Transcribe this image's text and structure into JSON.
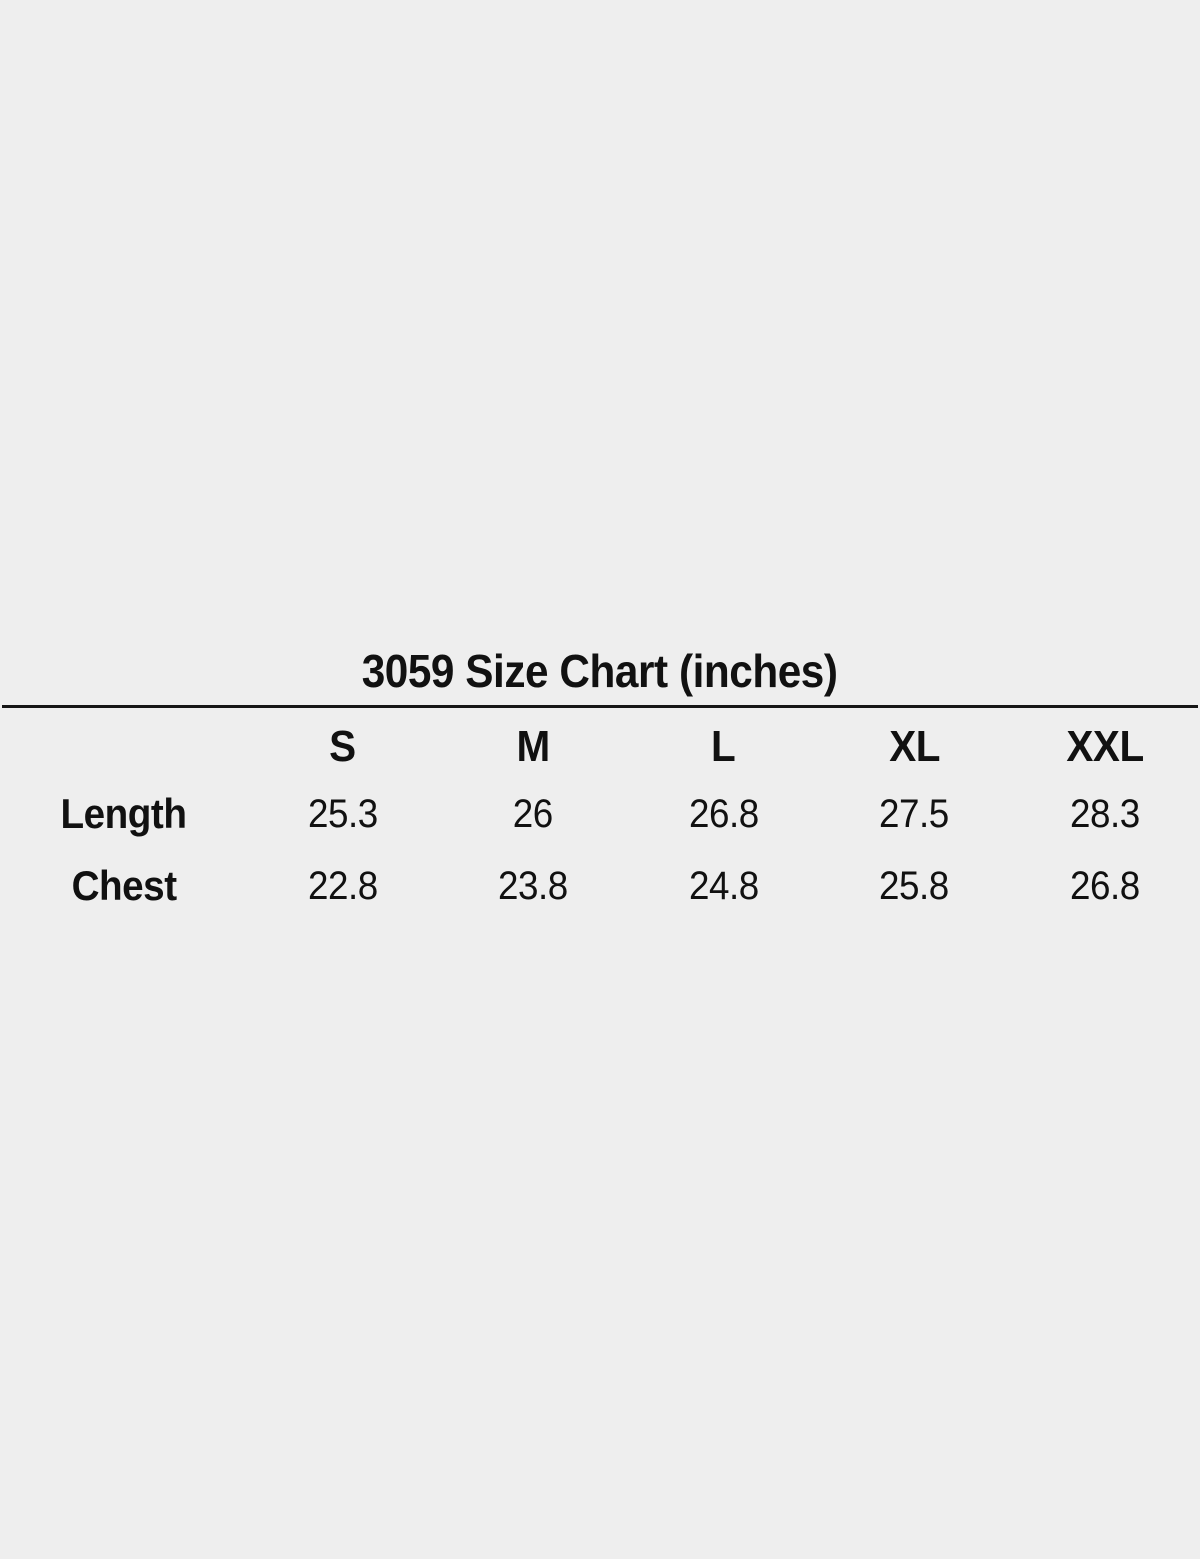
{
  "page": {
    "background_color": "#eeeeee",
    "text_color": "#111111",
    "rule_color": "#151515"
  },
  "chart_data": {
    "type": "table",
    "title": "3059 Size Chart (inches)",
    "columns": [
      "S",
      "M",
      "L",
      "XL",
      "XXL"
    ],
    "rows": [
      {
        "label": "Length",
        "values": [
          "25.3",
          "26",
          "26.8",
          "27.5",
          "28.3"
        ]
      },
      {
        "label": "Chest",
        "values": [
          "22.8",
          "23.8",
          "24.8",
          "25.8",
          "26.8"
        ]
      }
    ]
  }
}
